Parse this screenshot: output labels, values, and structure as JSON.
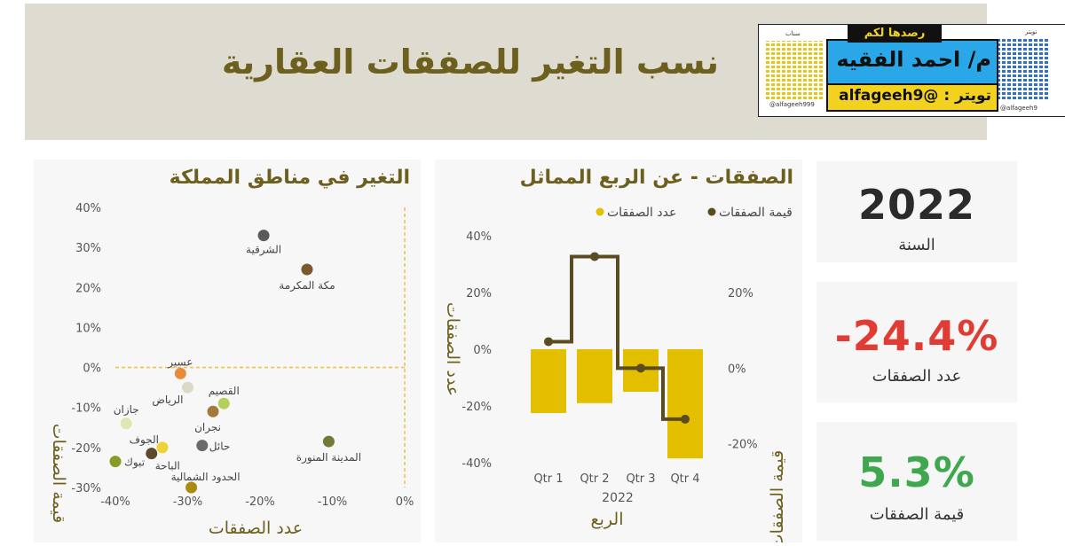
{
  "banner": {
    "title": "نسب التغير للصفقات العقارية"
  },
  "logo": {
    "tag": "رصدها لكم",
    "name": "م/ احمد الفقيه",
    "handle": "تويتر : @alfageeh9",
    "qr_left_caption": "@alfageeh999",
    "qr_left_label": "سناب",
    "qr_right_caption": "@alfageeh9",
    "qr_right_label": "تويتر"
  },
  "cards": [
    {
      "value": "2022",
      "label": "السنة",
      "color": "#2b2b2b"
    },
    {
      "value": "-24.4%",
      "label": "عدد الصفقات",
      "color": "#e03c34"
    },
    {
      "value": "5.3%",
      "label": "قيمة الصفقات",
      "color": "#3fa84f"
    }
  ],
  "chart_data": [
    {
      "type": "scatter",
      "title": "التغير في مناطق المملكة",
      "xlabel": "عدد الصفقات",
      "ylabel": "قيمة الصفقات",
      "xlim": [
        -40,
        0
      ],
      "ylim": [
        -30,
        40
      ],
      "xticks": [
        -40,
        -30,
        -20,
        -10,
        0
      ],
      "yticks": [
        -30,
        -20,
        -10,
        0,
        10,
        20,
        30,
        40
      ],
      "tick_format": "%",
      "reference_lines": {
        "x": 0,
        "y": 0,
        "color": "#f0c44c"
      },
      "points": [
        {
          "label": "الشرقية",
          "x": -19.5,
          "y": 33,
          "color": "#5a5a5a"
        },
        {
          "label": "مكة المكرمة",
          "x": -13.5,
          "y": 24.5,
          "color": "#7b5a30"
        },
        {
          "label": "عسير",
          "x": -31,
          "y": -1.5,
          "color": "#e98b3a"
        },
        {
          "label": "الرياض",
          "x": -30,
          "y": -5,
          "color": "#ddd9c8"
        },
        {
          "label": "القصيم",
          "x": -25,
          "y": -9,
          "color": "#b3d15a"
        },
        {
          "label": "نجران",
          "x": -26.5,
          "y": -11,
          "color": "#a07a3a"
        },
        {
          "label": "جازان",
          "x": -38.5,
          "y": -14,
          "color": "#e0e6b0"
        },
        {
          "label": "حائل",
          "x": -28,
          "y": -19.5,
          "color": "#6a6a6a"
        },
        {
          "label": "المدينة المنورة",
          "x": -10.5,
          "y": -18.5,
          "color": "#747a36"
        },
        {
          "label": "الجوف",
          "x": -33.5,
          "y": -20,
          "color": "#eed23a"
        },
        {
          "label": "الباحة",
          "x": -35,
          "y": -21.5,
          "color": "#5c4a2a"
        },
        {
          "label": "تبوك",
          "x": -40,
          "y": -23.5,
          "color": "#8a9a28"
        },
        {
          "label": "الحدود الشمالية",
          "x": -29.5,
          "y": -30,
          "color": "#ab8a10"
        }
      ]
    },
    {
      "type": "bar+line",
      "title": "الصفقات - عن الربع المماثل",
      "xlabel": "الربع",
      "x_sublabel": "2022",
      "ylabel_left": "عدد الصفقات",
      "ylabel_right": "قيمة الصفقات",
      "categories": [
        "Qtr 1",
        "Qtr 2",
        "Qtr 3",
        "Qtr 4"
      ],
      "left_ylim": [
        -40,
        40
      ],
      "left_yticks": [
        -40,
        -20,
        0,
        20,
        40
      ],
      "right_ylim": [
        -25,
        35
      ],
      "right_yticks": [
        -20,
        0,
        20
      ],
      "tick_format": "%",
      "series": [
        {
          "name": "عدد الصفقات",
          "type": "bar",
          "axis": "left",
          "color": "#e3bf00",
          "values": [
            -22.5,
            -19,
            -15,
            -38.5
          ]
        },
        {
          "name": "قيمة الصفقات",
          "type": "step-line",
          "axis": "right",
          "color": "#5b4b20",
          "values": [
            7,
            29.5,
            0,
            -13.5
          ]
        }
      ]
    }
  ]
}
